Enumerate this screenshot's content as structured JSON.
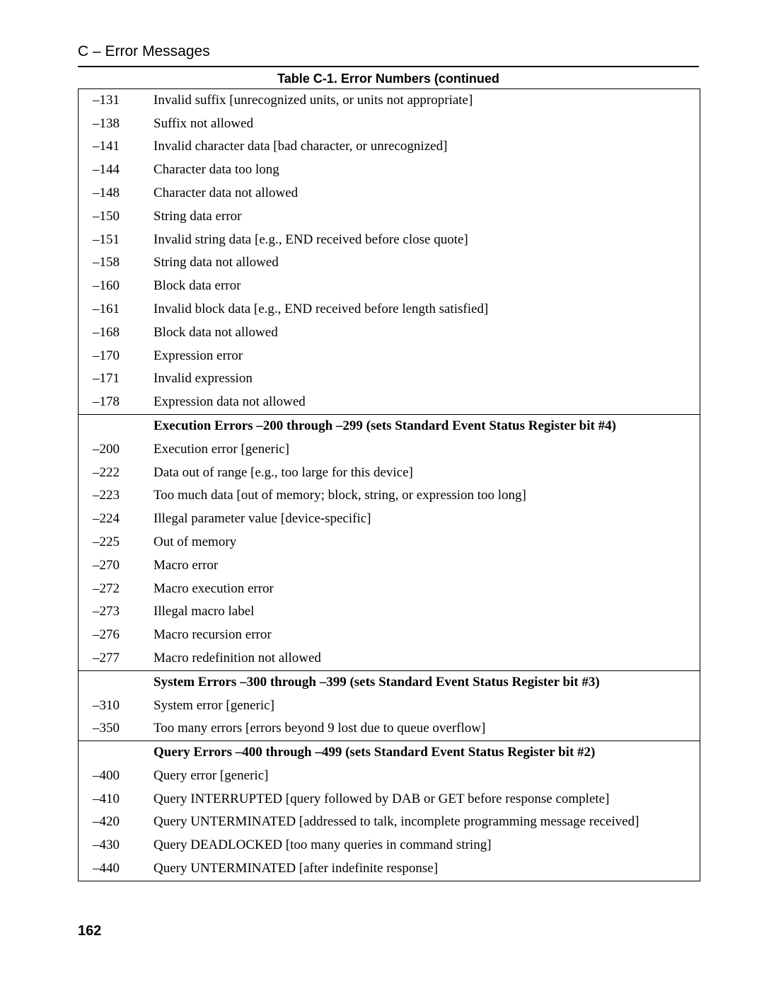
{
  "header": {
    "section": "C – Error Messages",
    "tableCaption": "Table C-1. Error Numbers (continued"
  },
  "pageNumber": "162",
  "colors": {
    "background": "#ffffff",
    "text": "#000000",
    "border": "#000000"
  },
  "typography": {
    "bodyFontFamily": "Times New Roman",
    "headerFontFamily": "Arial",
    "bodyFontSize": 19,
    "captionFontSize": 18,
    "sectionHeaderFontSize": 21,
    "pageNumberFontSize": 20
  },
  "groups": [
    {
      "heading": null,
      "dividerBefore": false,
      "rows": [
        {
          "code": "–131",
          "desc": "Invalid suffix [unrecognized units, or units not appropriate]"
        },
        {
          "code": "–138",
          "desc": "Suffix not allowed"
        },
        {
          "code": " –141",
          "desc": "Invalid character data [bad character, or unrecognized]"
        },
        {
          "code": "–144",
          "desc": "Character data too long"
        },
        {
          "code": "–148",
          "desc": "Character data not allowed"
        },
        {
          "code": "–150",
          "desc": "String data error"
        },
        {
          "code": "–151",
          "desc": "Invalid string data [e.g., END received before close quote]"
        },
        {
          "code": "–158",
          "desc": "String data not allowed"
        },
        {
          "code": "–160",
          "desc": "Block data error"
        },
        {
          "code": "–161",
          "desc": "Invalid block data [e.g., END received before length satisfied]"
        },
        {
          "code": "–168",
          "desc": "Block data not allowed"
        },
        {
          "code": "–170",
          "desc": "Expression error"
        },
        {
          "code": "–171",
          "desc": "Invalid expression"
        },
        {
          "code": "–178",
          "desc": "Expression data not allowed"
        }
      ]
    },
    {
      "heading": "Execution Errors –200 through –299 (sets Standard Event Status Register bit #4)",
      "dividerBefore": true,
      "rows": [
        {
          "code": "–200",
          "desc": "Execution error [generic]"
        },
        {
          "code": "–222",
          "desc": "Data out of range [e.g., too large for this device]"
        },
        {
          "code": "–223",
          "desc": "Too much data [out of memory; block, string, or expression too long]"
        },
        {
          "code": "–224",
          "desc": "Illegal parameter value [device-specific]"
        },
        {
          "code": "–225",
          "desc": "Out of memory"
        },
        {
          "code": "–270",
          "desc": "Macro error"
        },
        {
          "code": "–272",
          "desc": "Macro execution error"
        },
        {
          "code": "–273",
          "desc": "Illegal macro label"
        },
        {
          "code": "–276",
          "desc": "Macro recursion error"
        },
        {
          "code": "–277",
          "desc": "Macro redefinition not allowed"
        }
      ]
    },
    {
      "heading": "System Errors –300 through –399 (sets Standard Event Status Register bit #3)",
      "dividerBefore": true,
      "rows": [
        {
          "code": "–310",
          "desc": "System error [generic]"
        },
        {
          "code": "–350",
          "desc": "Too many errors [errors beyond 9 lost due to queue overflow]"
        }
      ]
    },
    {
      "heading": "Query Errors –400 through –499 (sets Standard Event Status Register bit #2)",
      "dividerBefore": true,
      "rows": [
        {
          "code": "–400",
          "desc": "Query error [generic]"
        },
        {
          "code": "–410",
          "desc": "Query INTERRUPTED [query followed by DAB or GET before response complete]"
        },
        {
          "code": "–420",
          "desc": "Query UNTERMINATED [addressed to talk, incomplete programming message received]"
        },
        {
          "code": "–430",
          "desc": "Query DEADLOCKED [too many queries in command string]"
        },
        {
          "code": "–440",
          "desc": "Query UNTERMINATED [after indefinite response]"
        }
      ]
    }
  ]
}
